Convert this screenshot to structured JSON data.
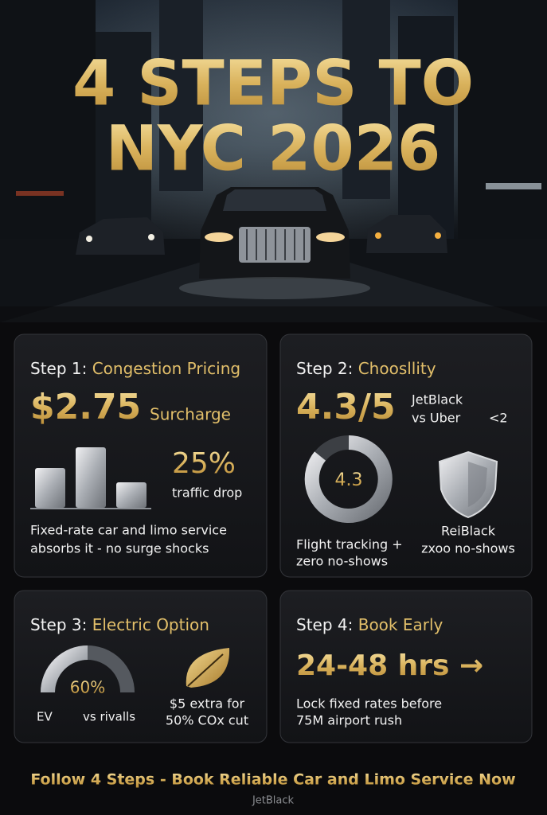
{
  "hero": {
    "title_lines": [
      "4 STEPS TO",
      "NYC 2026"
    ]
  },
  "steps": [
    {
      "label": "Step 1:",
      "title": "Congestion Pricing",
      "headline": "$2.75",
      "headline_unit": "Surcharge",
      "stat": "25%",
      "stat_caption": "traffic drop",
      "body": [
        "Fixed-rate car and limo service",
        "absorbs it - no surge shocks"
      ]
    },
    {
      "label": "Step 2:",
      "title": "Choosllity",
      "headline": "4.3/5",
      "compare": [
        "JetBlack",
        "vs Uber"
      ],
      "compare_note": "<2",
      "ring_value": "4.3",
      "body": [
        "Flight tracking +",
        "zero no-shows"
      ],
      "badge_caption": [
        "ReiBlack",
        "zxoo no-shows"
      ]
    },
    {
      "label": "Step 3:",
      "title": "Electric Option",
      "gauge_value": "60%",
      "gauge_left": "EV",
      "gauge_right": "vs rivalls",
      "body": [
        "$5 extra for",
        "50% COx cut"
      ]
    },
    {
      "label": "Step 4:",
      "title": "Book Early",
      "headline": "24-48 hrs →",
      "body": [
        "Lock fixed rates before",
        "75M airport rush"
      ]
    }
  ],
  "footer": {
    "cta": "Follow 4 Steps - Book Reliable Car and Limo Service Now",
    "brand": "JetBlack"
  }
}
